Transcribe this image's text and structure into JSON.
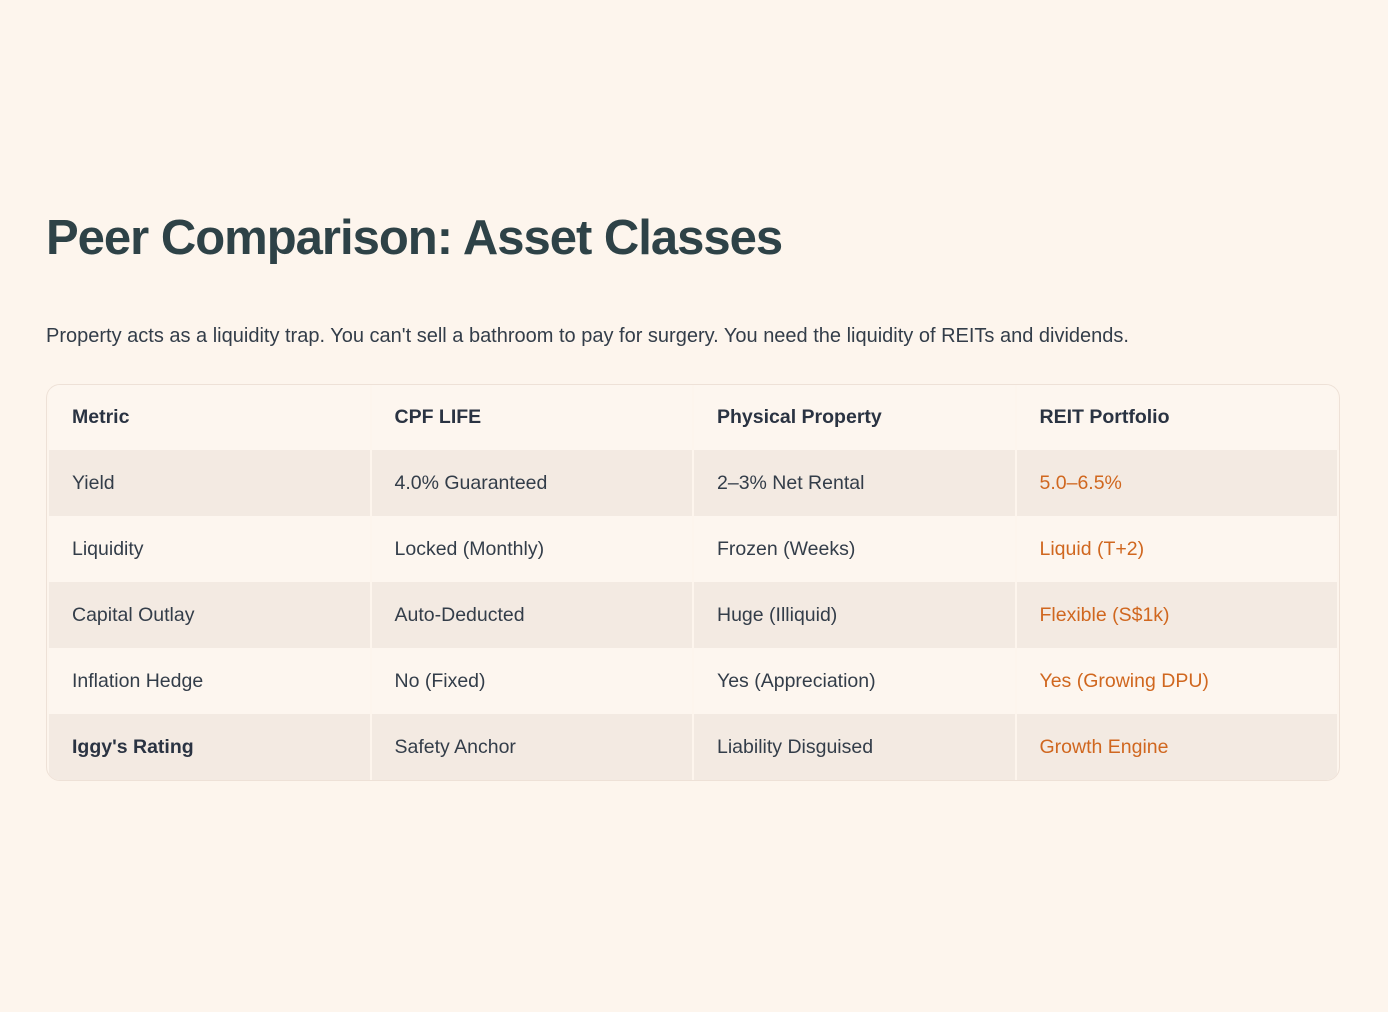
{
  "page": {
    "title": "Peer Comparison: Asset Classes",
    "description": "Property acts as a liquidity trap. You can't sell a bathroom to pay for surgery. You need the liquidity of REITs and dividends."
  },
  "colors": {
    "background": "#FDF5ED",
    "row_shaded": "#F3EAE2",
    "row_light": "#FDF6EF",
    "table_border": "#EEE1D7",
    "heading": "#2E4247",
    "body_text": "#333D49",
    "accent_orange": "#D0671F"
  },
  "table": {
    "columns": [
      "Metric",
      "CPF LIFE",
      "Physical Property",
      "REIT Portfolio"
    ],
    "rows": [
      {
        "metric": "Yield",
        "cpf_life": "4.0% Guaranteed",
        "physical_property": "2–3% Net Rental",
        "reit_portfolio": "5.0–6.5%"
      },
      {
        "metric": "Liquidity",
        "cpf_life": "Locked (Monthly)",
        "physical_property": "Frozen (Weeks)",
        "reit_portfolio": "Liquid (T+2)"
      },
      {
        "metric": "Capital Outlay",
        "cpf_life": "Auto-Deducted",
        "physical_property": "Huge (Illiquid)",
        "reit_portfolio": "Flexible (S$1k)"
      },
      {
        "metric": "Inflation Hedge",
        "cpf_life": "No (Fixed)",
        "physical_property": "Yes (Appreciation)",
        "reit_portfolio": "Yes (Growing DPU)"
      },
      {
        "metric": "Iggy's Rating",
        "cpf_life": "Safety Anchor",
        "physical_property": "Liability Disguised",
        "reit_portfolio": "Growth Engine"
      }
    ]
  }
}
